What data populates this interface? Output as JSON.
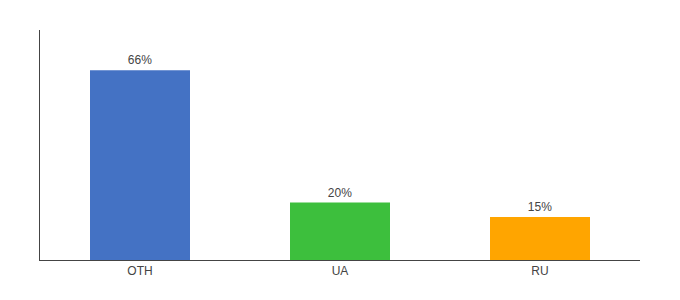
{
  "chart_data": {
    "type": "bar",
    "categories": [
      "OTH",
      "UA",
      "RU"
    ],
    "values": [
      66,
      20,
      15
    ],
    "value_labels": [
      "66%",
      "20%",
      "15%"
    ],
    "colors": [
      "#4472C4",
      "#3DBF3D",
      "#FFA500"
    ],
    "ylim": [
      0,
      80
    ],
    "data_labels": true,
    "tick_labels": "x",
    "grid": false
  }
}
